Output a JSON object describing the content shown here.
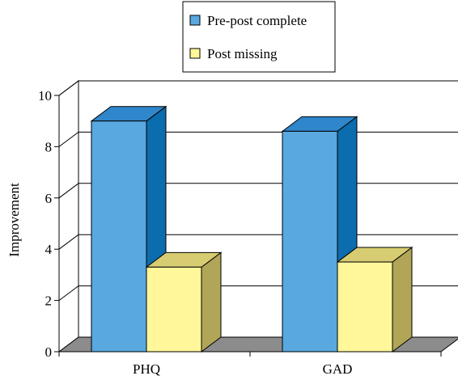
{
  "chart_data": {
    "type": "bar",
    "categories": [
      "PHQ",
      "GAD"
    ],
    "series": [
      {
        "name": "Pre-post complete",
        "values": [
          9.0,
          8.6
        ],
        "color": "#59A8E0",
        "side_color": "#0B6DAE",
        "top_color": "#2F86CB"
      },
      {
        "name": "Post missing",
        "values": [
          3.3,
          3.5
        ],
        "color": "#FFF799",
        "side_color": "#B1A557",
        "top_color": "#D8CC72"
      }
    ],
    "title": "",
    "xlabel": "",
    "ylabel": "Improvement",
    "ylim": [
      0,
      10
    ],
    "yticks": [
      0,
      2,
      4,
      6,
      8,
      10
    ],
    "grid": true,
    "legend_position": "top-center",
    "three_d": true
  }
}
